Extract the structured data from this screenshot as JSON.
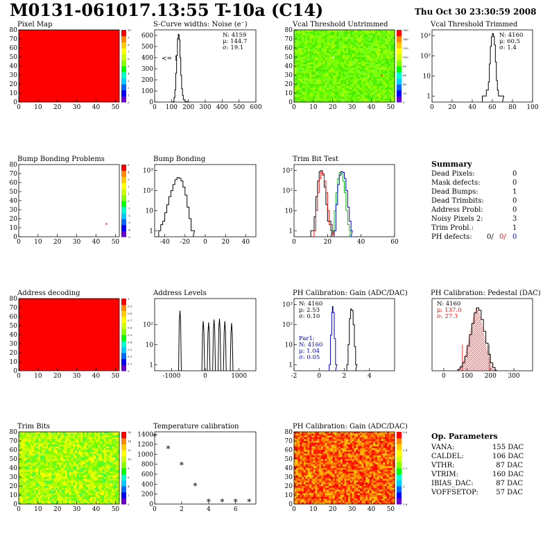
{
  "header": {
    "title": "M0131-061017.13:55 T-10a (C14)",
    "timestamp": "Thu Oct 30 23:30:59 2008"
  },
  "colors": {
    "red": "#ff0000",
    "green": "#00cc00",
    "blue": "#0000cc",
    "black": "#000000",
    "palette": [
      "#6600cc",
      "#0000ff",
      "#0066ff",
      "#00ccff",
      "#00ffcc",
      "#00ff00",
      "#88ff00",
      "#ccff00",
      "#ffff00",
      "#ffcc00",
      "#ff8800",
      "#ff0000"
    ]
  },
  "panels": [
    {
      "id": "pixel-map",
      "title": "Pixel Map",
      "chart_data": {
        "type": "heatmap",
        "xlabel": "",
        "ylabel": "",
        "xlim": [
          0,
          52
        ],
        "ylim": [
          0,
          80
        ],
        "x_ticks": [
          0,
          10,
          20,
          30,
          40,
          50
        ],
        "y_ticks": [
          0,
          10,
          20,
          30,
          40,
          50,
          60,
          70,
          80
        ],
        "fill": "uniform red",
        "colorbar_ticks": [
          "0",
          "1",
          "2",
          "3",
          "4",
          "5",
          "6",
          "7",
          "8",
          "9",
          "10"
        ]
      }
    },
    {
      "id": "scurve-noise",
      "title": "S-Curve widths: Noise (e⁻)",
      "chart_data": {
        "type": "line",
        "xlim": [
          0,
          600
        ],
        "ylim": [
          0,
          650
        ],
        "x_ticks": [
          0,
          100,
          200,
          300,
          400,
          500,
          600
        ],
        "y_ticks": [
          0,
          100,
          200,
          300,
          400,
          500,
          600
        ],
        "annotation": "<= 1",
        "stats": [
          "N: 4159",
          "μ: 144.7",
          "σ: 19.1"
        ],
        "x": [
          100,
          110,
          115,
          120,
          125,
          130,
          135,
          140,
          145,
          150,
          155,
          160,
          165,
          170,
          180,
          190,
          200
        ],
        "y": [
          0,
          5,
          40,
          110,
          260,
          420,
          570,
          610,
          560,
          400,
          240,
          120,
          60,
          20,
          5,
          2,
          0
        ]
      }
    },
    {
      "id": "vcal-untrimmed",
      "title": "Vcal Threshold Untrimmed",
      "chart_data": {
        "type": "heatmap",
        "xlim": [
          0,
          52
        ],
        "ylim": [
          0,
          80
        ],
        "x_ticks": [
          0,
          10,
          20,
          30,
          40,
          50
        ],
        "y_ticks": [
          0,
          10,
          20,
          30,
          40,
          50,
          60,
          70,
          80
        ],
        "fill": "mostly green with yellow noise",
        "colorbar_ticks": [
          "0",
          "20",
          "40",
          "60",
          "80",
          "100",
          "120",
          "140",
          "160"
        ]
      }
    },
    {
      "id": "vcal-trimmed",
      "title": "Vcal Threshold Trimmed",
      "chart_data": {
        "type": "line",
        "log_y": true,
        "xlim": [
          0,
          100
        ],
        "ylim": [
          0.5,
          2000
        ],
        "x_ticks": [
          0,
          20,
          40,
          60,
          80,
          100
        ],
        "y_ticks": [
          "1",
          "10",
          "10²",
          "10³"
        ],
        "stats": [
          "N: 4160",
          "μ: 60.5",
          "σ: 1.4"
        ],
        "x": [
          50,
          52,
          54,
          56,
          57,
          58,
          59,
          60,
          61,
          62,
          63,
          64,
          65,
          66,
          68,
          70
        ],
        "y": [
          1,
          1,
          2,
          5,
          40,
          300,
          900,
          1300,
          950,
          350,
          50,
          6,
          2,
          1,
          1,
          1
        ]
      }
    },
    {
      "id": "bump-problems",
      "title": "Bump Bonding Problems",
      "chart_data": {
        "type": "heatmap",
        "xlim": [
          0,
          52
        ],
        "ylim": [
          0,
          80
        ],
        "x_ticks": [
          0,
          10,
          20,
          30,
          40,
          50
        ],
        "y_ticks": [
          0,
          10,
          20,
          30,
          40,
          50,
          60,
          70,
          80
        ],
        "fill": "white with one marked pixel",
        "colorbar_ticks": [
          "-5",
          "-4",
          "-3",
          "-2",
          "-1",
          "0",
          "1",
          "2",
          "3",
          "4",
          "5"
        ]
      }
    },
    {
      "id": "bump-bonding",
      "title": "Bump Bonding",
      "chart_data": {
        "type": "line",
        "log_y": true,
        "xlim": [
          -50,
          50
        ],
        "ylim": [
          0.5,
          2000
        ],
        "x_ticks": [
          -40,
          -20,
          0,
          20,
          40
        ],
        "y_ticks": [
          "1",
          "10",
          "10²",
          "10³"
        ],
        "x": [
          -46,
          -44,
          -42,
          -40,
          -38,
          -36,
          -34,
          -32,
          -30,
          -28,
          -26,
          -24,
          -22,
          -20,
          -18,
          -16,
          -14,
          -12
        ],
        "y": [
          1,
          2,
          3,
          8,
          20,
          50,
          100,
          200,
          350,
          450,
          420,
          300,
          150,
          60,
          15,
          4,
          1,
          1
        ]
      }
    },
    {
      "id": "trim-bit-test",
      "title": "Trim Bit Test",
      "chart_data": {
        "type": "line",
        "log_y": true,
        "xlim": [
          0,
          60
        ],
        "ylim": [
          0.5,
          2000
        ],
        "x_ticks": [
          0,
          20,
          40,
          60
        ],
        "y_ticks": [
          "1",
          "10",
          "10²",
          "10³"
        ],
        "series": [
          {
            "color": "black",
            "x": [
              10,
              12,
              13,
              14,
              15,
              16,
              17,
              18,
              19,
              20,
              22
            ],
            "y": [
              1,
              5,
              50,
              300,
              900,
              1000,
              600,
              150,
              20,
              3,
              1
            ]
          },
          {
            "color": "red",
            "x": [
              12,
              13,
              14,
              15,
              16,
              17,
              18,
              19,
              20,
              21,
              23
            ],
            "y": [
              1,
              10,
              80,
              400,
              800,
              700,
              300,
              80,
              10,
              2,
              1
            ]
          },
          {
            "color": "green",
            "x": [
              23,
              24,
              25,
              26,
              27,
              28,
              29,
              30,
              31,
              32,
              33
            ],
            "y": [
              1,
              10,
              80,
              400,
              800,
              700,
              300,
              80,
              10,
              2,
              1
            ]
          },
          {
            "color": "blue",
            "x": [
              24,
              25,
              26,
              27,
              28,
              29,
              30,
              31,
              32,
              33,
              34
            ],
            "y": [
              1,
              20,
              200,
              600,
              900,
              800,
              400,
              100,
              15,
              3,
              1
            ]
          }
        ]
      }
    },
    {
      "id": "address-decoding",
      "title": "Address decoding",
      "chart_data": {
        "type": "heatmap",
        "xlim": [
          0,
          52
        ],
        "ylim": [
          0,
          80
        ],
        "x_ticks": [
          0,
          10,
          20,
          30,
          40,
          50
        ],
        "y_ticks": [
          0,
          10,
          20,
          30,
          40,
          50,
          60,
          70,
          80
        ],
        "fill": "uniform red",
        "colorbar_ticks": [
          "0",
          "0.1",
          "0.2",
          "0.3",
          "0.4",
          "0.5",
          "0.6",
          "0.7",
          "0.8",
          "0.9",
          "1"
        ]
      }
    },
    {
      "id": "address-levels",
      "title": "Address Levels",
      "chart_data": {
        "type": "line",
        "log_y": true,
        "xlim": [
          -1500,
          1500
        ],
        "ylim": [
          0.5,
          2000
        ],
        "x_ticks": [
          -1000,
          0,
          1000
        ],
        "y_ticks": [
          "1",
          "10",
          "10²"
        ],
        "peaks": [
          {
            "center": -750,
            "height": 500
          },
          {
            "center": -60,
            "height": 150
          },
          {
            "center": 100,
            "height": 130
          },
          {
            "center": 260,
            "height": 180
          },
          {
            "center": 420,
            "height": 200
          },
          {
            "center": 580,
            "height": 150
          },
          {
            "center": 780,
            "height": 120
          }
        ]
      }
    },
    {
      "id": "ph-gain",
      "title": "PH Calibration: Gain (ADC/DAC)",
      "chart_data": {
        "type": "line",
        "log_y": true,
        "xlim": [
          -2,
          6
        ],
        "ylim": [
          0.5,
          2000
        ],
        "x_ticks": [
          -2,
          0,
          2,
          4
        ],
        "y_ticks": [
          "1",
          "10",
          "10²",
          "10³"
        ],
        "stats_black": [
          "N: 4160",
          "μ: 2.53",
          "σ: 0.10"
        ],
        "stats_blue": [
          "Par1:",
          "N: 4160",
          "μ: 1.04",
          "σ: 0.05"
        ],
        "series": [
          {
            "color": "black",
            "x": [
              2.2,
              2.3,
              2.4,
              2.5,
              2.6,
              2.7,
              2.8,
              2.9
            ],
            "y": [
              1,
              10,
              200,
              600,
              500,
              100,
              8,
              1
            ]
          },
          {
            "color": "blue",
            "x": [
              0.8,
              0.9,
              1.0,
              1.05,
              1.1,
              1.2,
              1.3
            ],
            "y": [
              1,
              30,
              400,
              800,
              400,
              20,
              1
            ]
          }
        ]
      }
    },
    {
      "id": "ph-pedestal",
      "title": "PH Calibration: Pedestal (DAC)",
      "chart_data": {
        "type": "line",
        "xlim": [
          -50,
          380
        ],
        "ylim": [
          0,
          110
        ],
        "x_ticks": [
          0,
          100,
          200,
          300
        ],
        "y_ticks": [],
        "stats_black": [
          "N: 4160"
        ],
        "stats_red": [
          "μ: 137.0",
          "σ: 27.3"
        ],
        "x": [
          60,
          70,
          80,
          90,
          100,
          110,
          120,
          130,
          140,
          150,
          160,
          170,
          180,
          190,
          200,
          210,
          220
        ],
        "y": [
          2,
          6,
          12,
          22,
          38,
          55,
          72,
          88,
          96,
          92,
          78,
          60,
          42,
          25,
          12,
          5,
          1
        ]
      }
    },
    {
      "id": "trim-bits",
      "title": "Trim Bits",
      "chart_data": {
        "type": "heatmap",
        "xlim": [
          0,
          52
        ],
        "ylim": [
          0,
          80
        ],
        "x_ticks": [
          0,
          10,
          20,
          30,
          40,
          50
        ],
        "y_ticks": [
          0,
          10,
          20,
          30,
          40,
          50,
          60,
          70,
          80
        ],
        "fill": "green/yellow noise",
        "colorbar_ticks": [
          "0",
          "2",
          "4",
          "6",
          "8",
          "10",
          "12",
          "14",
          "16"
        ]
      }
    },
    {
      "id": "temperature-calibration",
      "title": "Temperature calibration",
      "chart_data": {
        "type": "scatter",
        "xlim": [
          0,
          7.5
        ],
        "ylim": [
          0,
          1450
        ],
        "x_ticks": [
          0,
          2,
          4,
          6
        ],
        "y_ticks": [
          0,
          200,
          400,
          600,
          800,
          1000,
          1200,
          1400
        ],
        "x": [
          0,
          1,
          2,
          3,
          4,
          5,
          6,
          7
        ],
        "y": [
          1350,
          1110,
          780,
          360,
          40,
          40,
          40,
          40
        ]
      }
    },
    {
      "id": "ph-gain-map",
      "title": "PH Calibration: Gain (ADC/DAC)",
      "chart_data": {
        "type": "heatmap",
        "xlim": [
          0,
          52
        ],
        "ylim": [
          0,
          80
        ],
        "x_ticks": [
          0,
          10,
          20,
          30,
          40,
          50
        ],
        "y_ticks": [
          0,
          10,
          20,
          30,
          40,
          50,
          60,
          70,
          80
        ],
        "fill": "red/orange/yellow column noise",
        "colorbar_ticks": [
          "1.8",
          "2",
          "2.2",
          "2.4",
          "2.6"
        ]
      }
    }
  ],
  "summary": {
    "heading": "Summary",
    "rows": [
      {
        "label": "Dead Pixels:",
        "value": "0"
      },
      {
        "label": "Mask defects:",
        "value": "0"
      },
      {
        "label": "Dead Bumps:",
        "value": "1"
      },
      {
        "label": "Dead Trimbits:",
        "value": "0"
      },
      {
        "label": "Address Probl:",
        "value": "0"
      },
      {
        "label": "Noisy Pixels 2:",
        "value": "3"
      },
      {
        "label": "Trim Probl.:",
        "value": "1"
      }
    ],
    "ph_defects": {
      "label": "PH defects:",
      "v1": "0/",
      "v2": "0/",
      "v3": "0"
    }
  },
  "op_params": {
    "heading": "Op. Parameters",
    "rows": [
      {
        "label": "VANA:",
        "value": "155 DAC"
      },
      {
        "label": "CALDEL:",
        "value": "106 DAC"
      },
      {
        "label": "VTHR:",
        "value": "87 DAC"
      },
      {
        "label": "VTRIM:",
        "value": "160 DAC"
      },
      {
        "label": "IBIAS_DAC:",
        "value": "87 DAC"
      },
      {
        "label": "VOFFSETOP:",
        "value": "57 DAC"
      }
    ]
  }
}
